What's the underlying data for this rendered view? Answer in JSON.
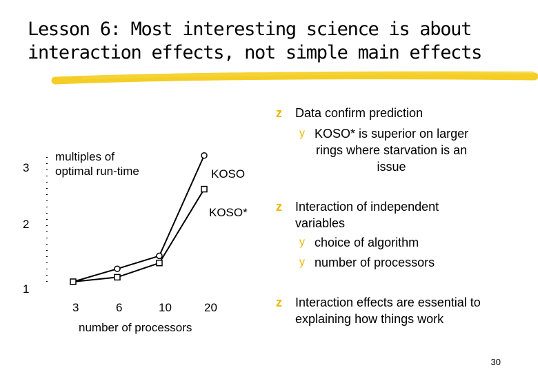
{
  "title": {
    "line1": "Lesson 6: Most interesting science is about",
    "line2": "interaction effects, not simple main effects"
  },
  "colors": {
    "accent": "#f2c500",
    "bullet": "#e8b800",
    "text": "#000000"
  },
  "chart_data": {
    "type": "line",
    "ylabel": "multiples of optimal run-time",
    "ylabel_lines": [
      "multiples of",
      "optimal run-time"
    ],
    "xlabel": "number of processors",
    "categories": [
      "3",
      "6",
      "10",
      "20"
    ],
    "yticks": [
      "1",
      "2",
      "3"
    ],
    "ylim": [
      1,
      3.4
    ],
    "grid": false,
    "series": [
      {
        "name": "KOSO",
        "marker": "circle",
        "values": [
          1.0,
          1.2,
          1.4,
          2.95
        ]
      },
      {
        "name": "KOSO*",
        "marker": "square",
        "values": [
          1.0,
          1.07,
          1.29,
          2.43
        ]
      }
    ]
  },
  "bullets": [
    {
      "text": "Data confirm prediction"
    },
    {
      "text_lines": [
        "KOSO* is superior on larger",
        "rings where starvation is an",
        "issue"
      ]
    },
    {
      "text_lines": [
        "Interaction of independent",
        "variables"
      ]
    },
    {
      "text": "choice of algorithm"
    },
    {
      "text": "number of processors"
    },
    {
      "text_lines": [
        "Interaction effects are essential to",
        "explaining how things work"
      ]
    }
  ],
  "page_number": "30"
}
